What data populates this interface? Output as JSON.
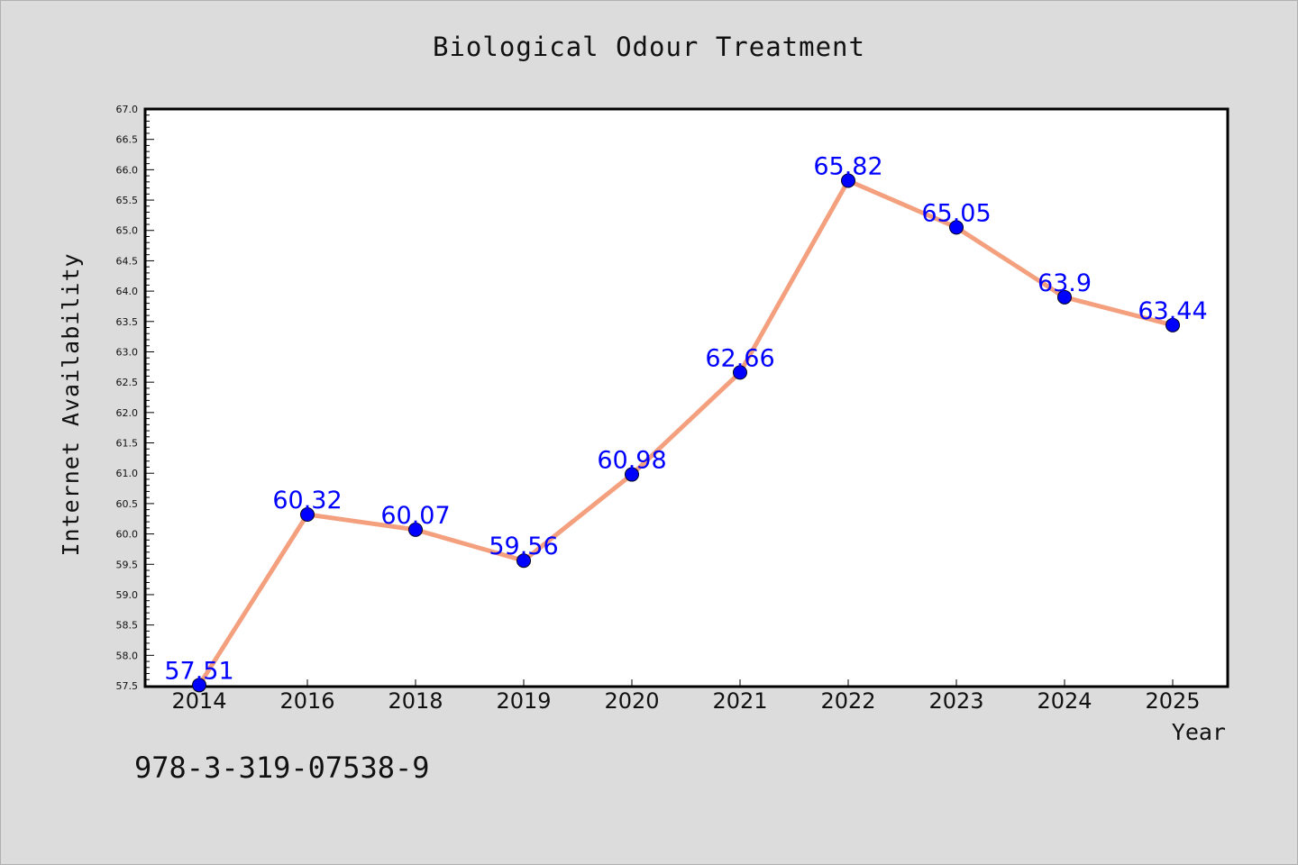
{
  "chart_data": {
    "type": "line",
    "title": "Biological Odour Treatment",
    "xlabel": "Year",
    "ylabel": "Internet Availability",
    "categories": [
      "2014",
      "2016",
      "2018",
      "2019",
      "2020",
      "2021",
      "2022",
      "2023",
      "2024",
      "2025"
    ],
    "series": [
      {
        "values": [
          57.51,
          60.32,
          60.07,
          59.56,
          60.98,
          62.66,
          65.82,
          65.05,
          63.9,
          63.44
        ],
        "data_labels": [
          "57.51",
          "60.32",
          "60.07",
          "59.56",
          "60.98",
          "62.66",
          "65.82",
          "65.05",
          "63.9",
          "63.44"
        ],
        "line_color": "#f4a07e",
        "marker_color": "#0000ff"
      }
    ],
    "ylim": [
      57.5,
      67.0
    ],
    "yticks": [
      "57.5",
      "58.0",
      "58.5",
      "59.0",
      "59.5",
      "60.0",
      "60.5",
      "61.0",
      "61.5",
      "62.0",
      "62.5",
      "63.0",
      "63.5",
      "64.0",
      "64.5",
      "65.0",
      "65.5",
      "66.0",
      "66.5",
      "67.0"
    ],
    "grid": false,
    "label_color": "#0000ff"
  },
  "annotation": {
    "isbn": "978-3-319-07538-9"
  }
}
